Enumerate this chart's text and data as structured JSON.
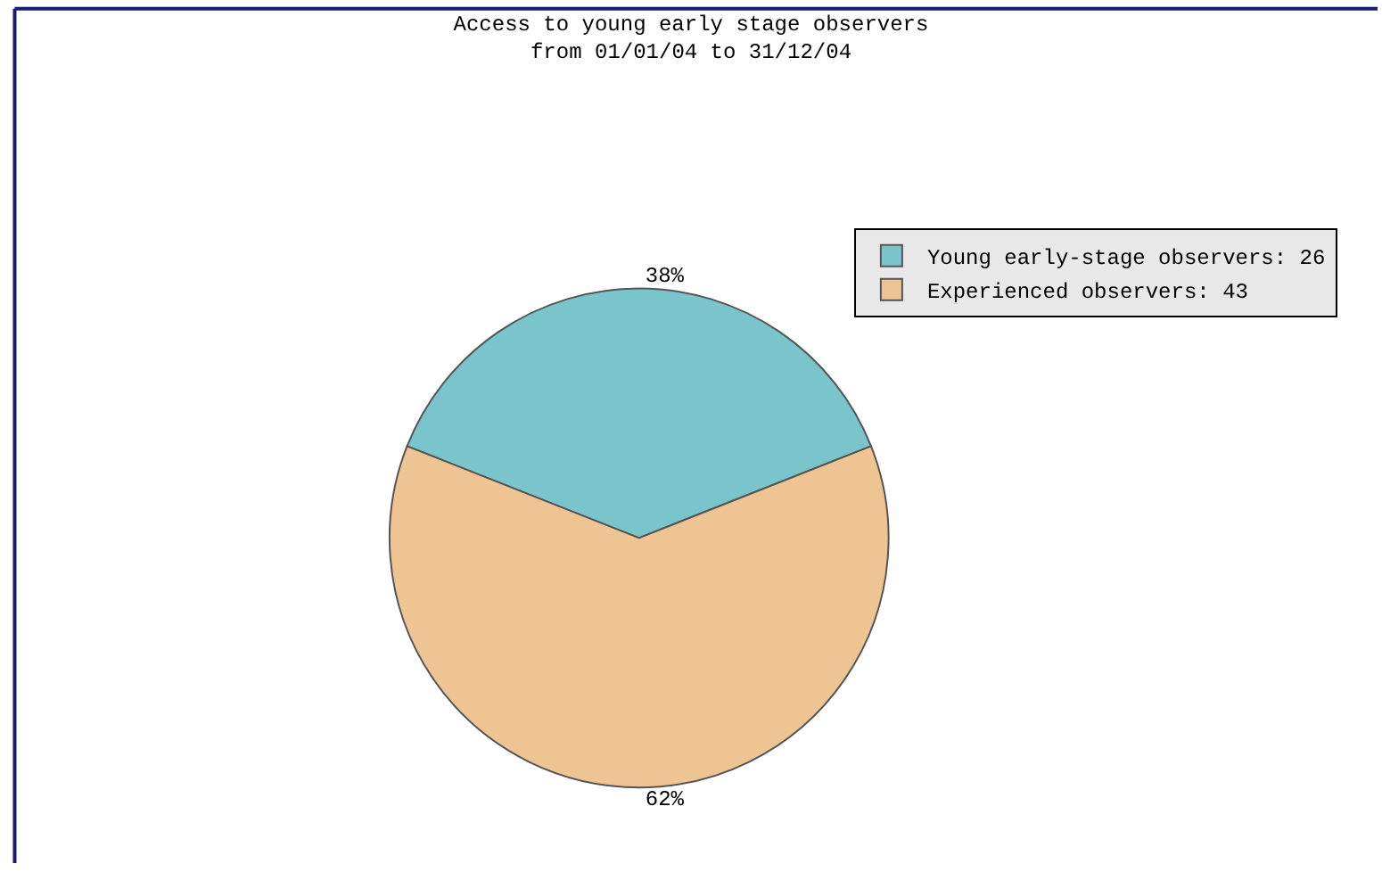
{
  "chart_data": {
    "type": "pie",
    "title": "Access to young early stage observers\nfrom 01/01/04 to 31/12/04",
    "categories": [
      "Young early-stage observers: 26",
      "Experienced observers: 43"
    ],
    "values": [
      38,
      62
    ],
    "colors": [
      "#7ac4cc",
      "#eec592"
    ],
    "value_labels": [
      "38%",
      "62%"
    ],
    "legend": "top right"
  }
}
